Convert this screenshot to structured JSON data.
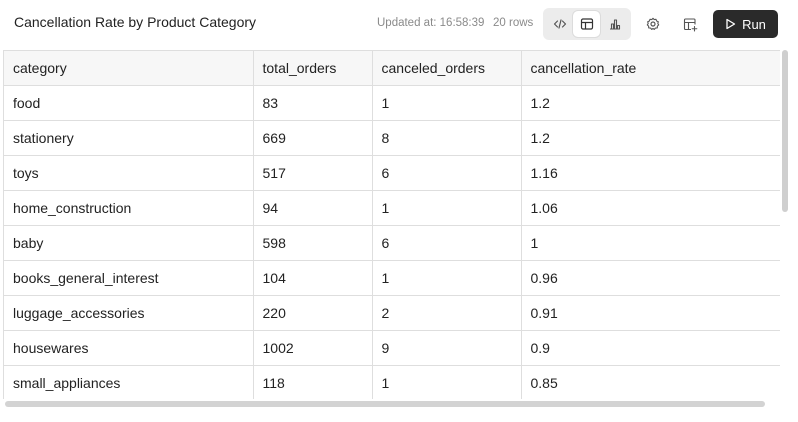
{
  "header": {
    "title": "Cancellation Rate by Product Category",
    "updated": "Updated at: 16:58:39",
    "rows": "20 rows",
    "run_label": "Run"
  },
  "icons": [
    "code-icon",
    "table-icon",
    "bar-chart-icon",
    "gear-icon",
    "table-add-icon",
    "play-icon"
  ],
  "table": {
    "columns": [
      "category",
      "total_orders",
      "canceled_orders",
      "cancellation_rate"
    ],
    "rows": [
      [
        "food",
        "83",
        "1",
        "1.2"
      ],
      [
        "stationery",
        "669",
        "8",
        "1.2"
      ],
      [
        "toys",
        "517",
        "6",
        "1.16"
      ],
      [
        "home_construction",
        "94",
        "1",
        "1.06"
      ],
      [
        "baby",
        "598",
        "6",
        "1"
      ],
      [
        "books_general_interest",
        "104",
        "1",
        "0.96"
      ],
      [
        "luggage_accessories",
        "220",
        "2",
        "0.91"
      ],
      [
        "housewares",
        "1002",
        "9",
        "0.9"
      ],
      [
        "small_appliances",
        "118",
        "1",
        "0.85"
      ]
    ]
  }
}
